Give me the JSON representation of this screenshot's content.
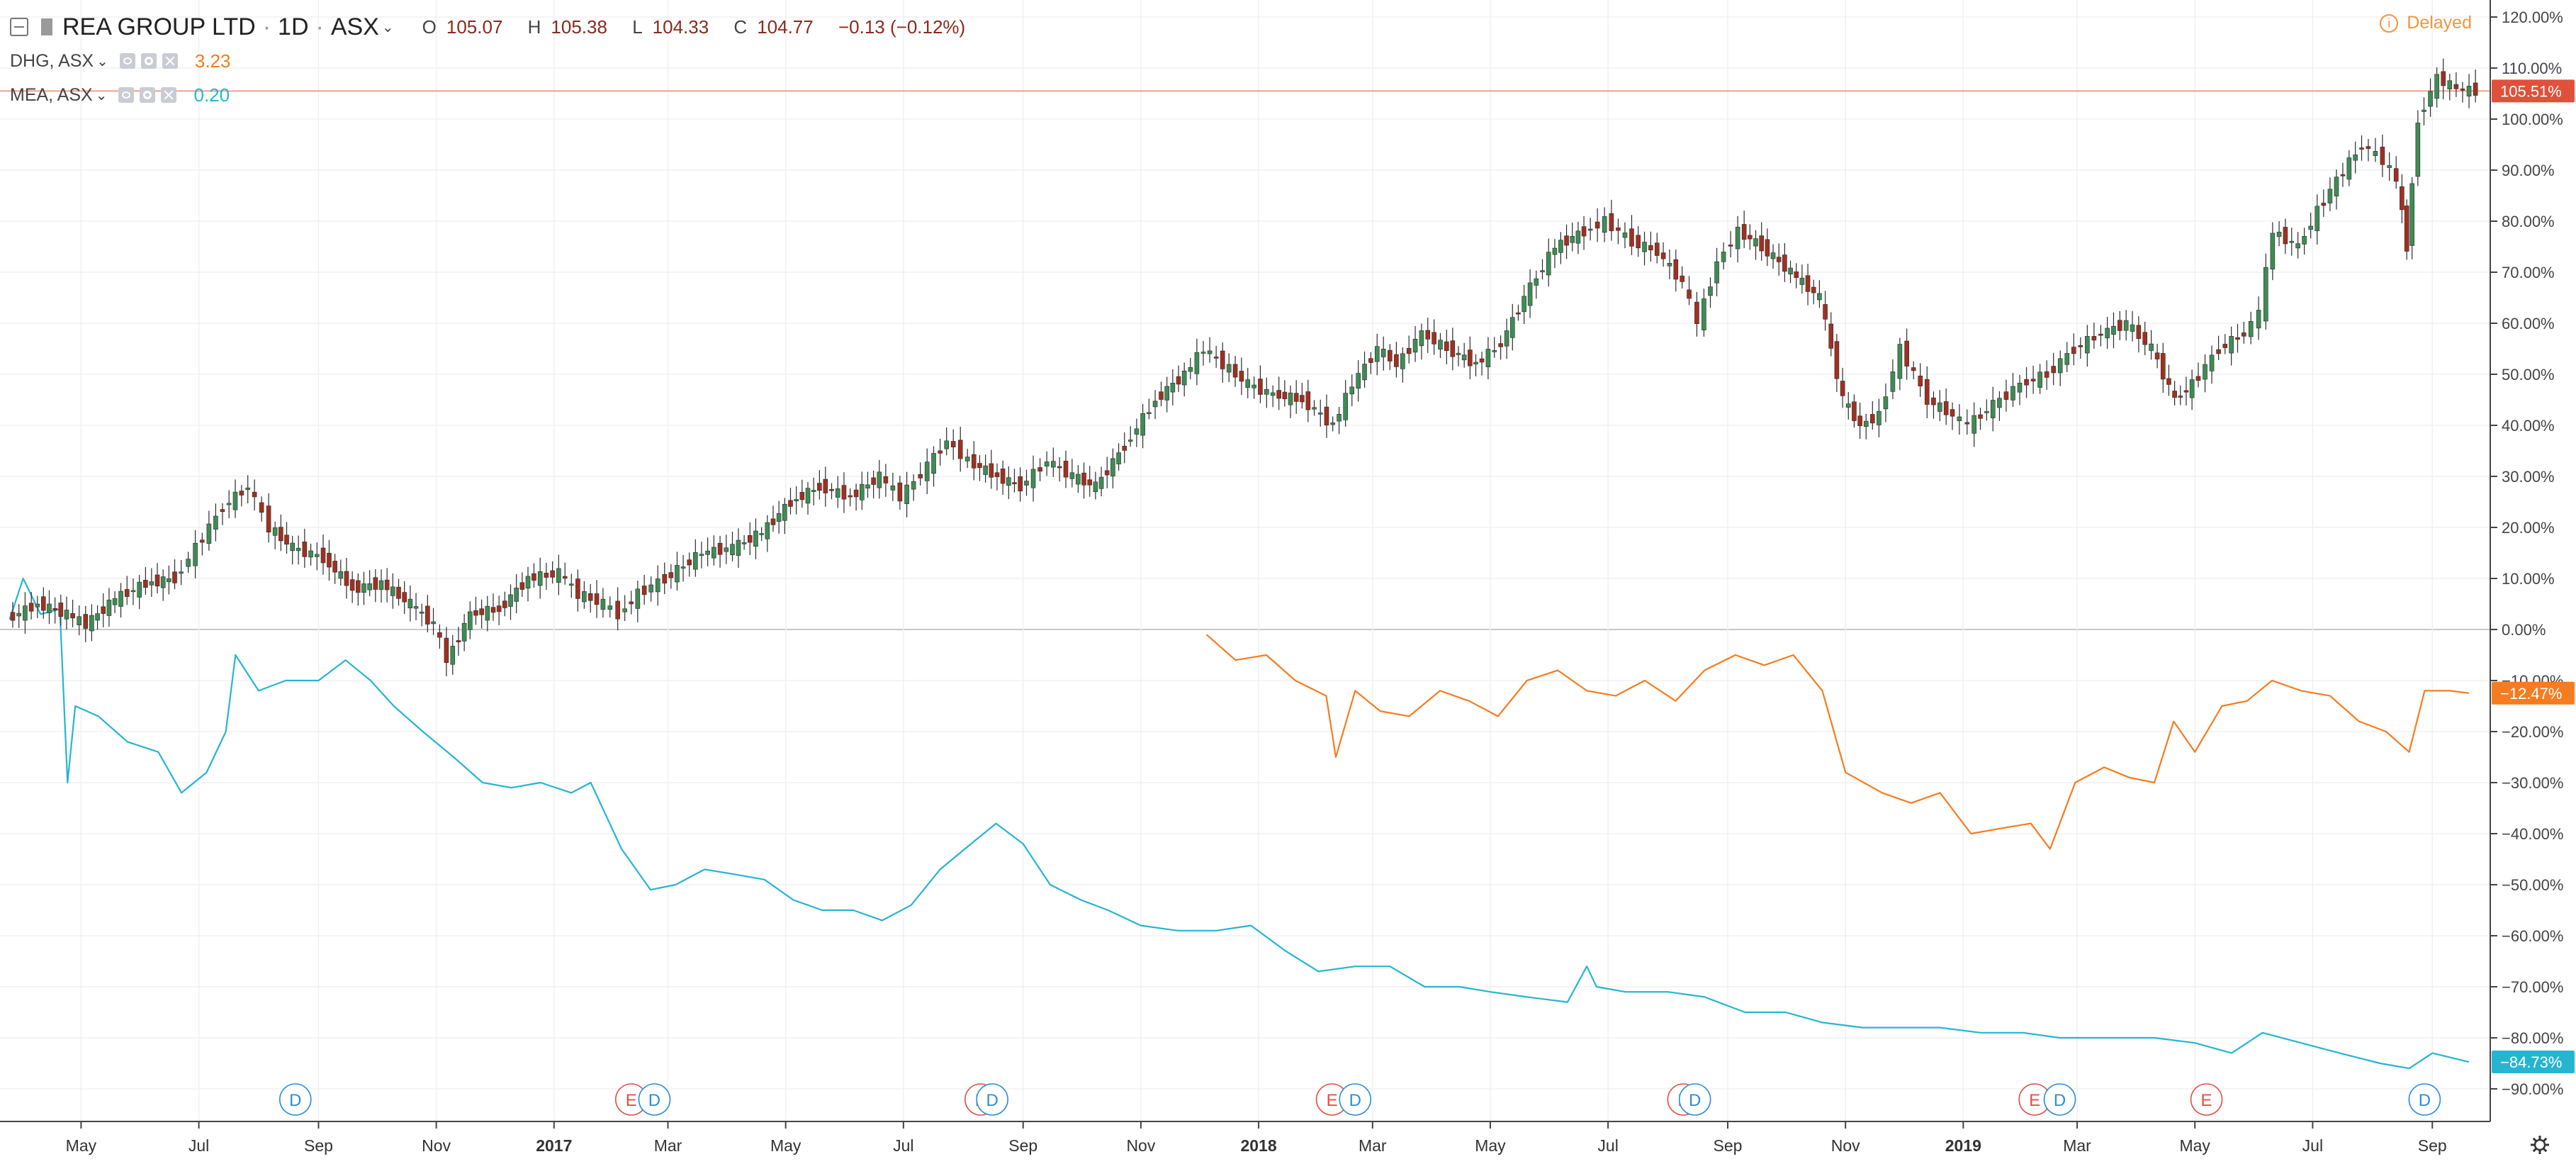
{
  "legend": {
    "symbol": "REA GROUP LTD",
    "interval": "1D",
    "exchange": "ASX",
    "ohlc": {
      "o_label": "O",
      "o": "105.07",
      "h_label": "H",
      "h": "105.38",
      "l_label": "L",
      "l": "104.33",
      "c_label": "C",
      "c": "104.77",
      "change": "−0.13 (−0.12%)"
    },
    "comparisons": [
      {
        "name": "DHG, ASX",
        "value": "3.23",
        "color": "#f57c1f"
      },
      {
        "name": "MEA, ASX",
        "value": "0.20",
        "color": "#26b5d1"
      }
    ]
  },
  "status": {
    "delayed_label": "Delayed",
    "info_icon": "i"
  },
  "icons": {
    "collapse": "collapse-icon",
    "flag": "flag-icon",
    "settings": "gear-icon"
  },
  "chart_data": {
    "type": "line",
    "grid": true,
    "y_scale": "percent",
    "ylim": [
      -95,
      122
    ],
    "y_ticks": [
      "120.00%",
      "110.00%",
      "100.00%",
      "90.00%",
      "80.00%",
      "70.00%",
      "60.00%",
      "50.00%",
      "40.00%",
      "30.00%",
      "20.00%",
      "10.00%",
      "0.00%",
      "−10.00%",
      "−20.00%",
      "−30.00%",
      "−40.00%",
      "−50.00%",
      "−60.00%",
      "−70.00%",
      "−80.00%",
      "−90.00%"
    ],
    "x_ticks": [
      {
        "label": "May",
        "x": "2016-05-01"
      },
      {
        "label": "Jul",
        "x": "2016-07-01"
      },
      {
        "label": "Sep",
        "x": "2016-09-01"
      },
      {
        "label": "Nov",
        "x": "2016-11-01"
      },
      {
        "label": "2017",
        "x": "2017-01-01"
      },
      {
        "label": "Mar",
        "x": "2017-03-01"
      },
      {
        "label": "May",
        "x": "2017-05-01"
      },
      {
        "label": "Jul",
        "x": "2017-07-01"
      },
      {
        "label": "Sep",
        "x": "2017-09-01"
      },
      {
        "label": "Nov",
        "x": "2017-11-01"
      },
      {
        "label": "2018",
        "x": "2018-01-01"
      },
      {
        "label": "Mar",
        "x": "2018-03-01"
      },
      {
        "label": "May",
        "x": "2018-05-01"
      },
      {
        "label": "Jul",
        "x": "2018-07-01"
      },
      {
        "label": "Sep",
        "x": "2018-09-01"
      },
      {
        "label": "Nov",
        "x": "2018-11-01"
      },
      {
        "label": "2019",
        "x": "2019-01-01"
      },
      {
        "label": "Mar",
        "x": "2019-03-01"
      },
      {
        "label": "May",
        "x": "2019-05-01"
      },
      {
        "label": "Jul",
        "x": "2019-07-01"
      },
      {
        "label": "Sep",
        "x": "2019-09-01"
      }
    ],
    "series": [
      {
        "name": "REA GROUP LTD",
        "style": "candles",
        "up_color": "#3e8c55",
        "down_color": "#a03020",
        "last_label": "105.51%",
        "last_bg": "#e0503a",
        "points": [
          [
            "2016-03-25",
            2
          ],
          [
            "2016-04-10",
            5
          ],
          [
            "2016-04-25",
            3
          ],
          [
            "2016-05-05",
            1
          ],
          [
            "2016-05-20",
            6
          ],
          [
            "2016-06-05",
            9
          ],
          [
            "2016-06-20",
            10
          ],
          [
            "2016-07-01",
            16
          ],
          [
            "2016-07-15",
            24
          ],
          [
            "2016-07-28",
            28
          ],
          [
            "2016-08-08",
            20
          ],
          [
            "2016-08-20",
            16
          ],
          [
            "2016-09-05",
            14
          ],
          [
            "2016-09-20",
            8
          ],
          [
            "2016-10-05",
            9
          ],
          [
            "2016-10-20",
            5
          ],
          [
            "2016-11-01",
            1
          ],
          [
            "2016-11-08",
            -6
          ],
          [
            "2016-11-20",
            3
          ],
          [
            "2016-12-05",
            4
          ],
          [
            "2016-12-20",
            10
          ],
          [
            "2017-01-05",
            11
          ],
          [
            "2017-01-15",
            7
          ],
          [
            "2017-01-28",
            5
          ],
          [
            "2017-02-05",
            3
          ],
          [
            "2017-02-15",
            7
          ],
          [
            "2017-03-01",
            10
          ],
          [
            "2017-03-20",
            15
          ],
          [
            "2017-04-05",
            16
          ],
          [
            "2017-04-20",
            19
          ],
          [
            "2017-05-05",
            25
          ],
          [
            "2017-05-20",
            28
          ],
          [
            "2017-06-05",
            26
          ],
          [
            "2017-06-20",
            30
          ],
          [
            "2017-07-01",
            26
          ],
          [
            "2017-07-15",
            32
          ],
          [
            "2017-07-25",
            37
          ],
          [
            "2017-08-05",
            33
          ],
          [
            "2017-08-20",
            30
          ],
          [
            "2017-09-01",
            28
          ],
          [
            "2017-09-15",
            33
          ],
          [
            "2017-09-28",
            30
          ],
          [
            "2017-10-10",
            28
          ],
          [
            "2017-10-25",
            36
          ],
          [
            "2017-11-10",
            45
          ],
          [
            "2017-11-25",
            50
          ],
          [
            "2017-12-05",
            55
          ],
          [
            "2017-12-15",
            52
          ],
          [
            "2017-12-28",
            48
          ],
          [
            "2018-01-10",
            46
          ],
          [
            "2018-01-25",
            45
          ],
          [
            "2018-02-10",
            40
          ],
          [
            "2018-02-20",
            48
          ],
          [
            "2018-03-05",
            55
          ],
          [
            "2018-03-15",
            52
          ],
          [
            "2018-03-28",
            58
          ],
          [
            "2018-04-10",
            55
          ],
          [
            "2018-04-25",
            52
          ],
          [
            "2018-05-08",
            56
          ],
          [
            "2018-05-20",
            65
          ],
          [
            "2018-06-05",
            75
          ],
          [
            "2018-06-20",
            78
          ],
          [
            "2018-07-01",
            80
          ],
          [
            "2018-07-15",
            76
          ],
          [
            "2018-07-28",
            74
          ],
          [
            "2018-08-10",
            68
          ],
          [
            "2018-08-18",
            60
          ],
          [
            "2018-08-28",
            72
          ],
          [
            "2018-09-08",
            78
          ],
          [
            "2018-09-20",
            75
          ],
          [
            "2018-10-05",
            70
          ],
          [
            "2018-10-20",
            65
          ],
          [
            "2018-11-01",
            45
          ],
          [
            "2018-11-10",
            40
          ],
          [
            "2018-11-20",
            42
          ],
          [
            "2018-12-01",
            55
          ],
          [
            "2018-12-15",
            45
          ],
          [
            "2018-12-28",
            42
          ],
          [
            "2019-01-05",
            40
          ],
          [
            "2019-01-18",
            44
          ],
          [
            "2019-02-01",
            48
          ],
          [
            "2019-02-15",
            50
          ],
          [
            "2019-03-01",
            55
          ],
          [
            "2019-03-15",
            58
          ],
          [
            "2019-03-28",
            60
          ],
          [
            "2019-04-10",
            55
          ],
          [
            "2019-04-22",
            45
          ],
          [
            "2019-05-01",
            48
          ],
          [
            "2019-05-15",
            55
          ],
          [
            "2019-05-28",
            58
          ],
          [
            "2019-06-05",
            62
          ],
          [
            "2019-06-12",
            78
          ],
          [
            "2019-06-25",
            75
          ],
          [
            "2019-07-05",
            82
          ],
          [
            "2019-07-15",
            88
          ],
          [
            "2019-07-28",
            95
          ],
          [
            "2019-08-08",
            92
          ],
          [
            "2019-08-15",
            88
          ],
          [
            "2019-08-20",
            75
          ],
          [
            "2019-08-26",
            100
          ],
          [
            "2019-09-05",
            108
          ],
          [
            "2019-09-15",
            106
          ],
          [
            "2019-09-25",
            105.5
          ]
        ]
      },
      {
        "name": "DHG, ASX",
        "style": "line",
        "color": "#f57c1f",
        "last_label": "−12.47%",
        "last_bg": "#f57c1f",
        "points": [
          [
            "2017-12-05",
            -1
          ],
          [
            "2017-12-20",
            -6
          ],
          [
            "2018-01-05",
            -5
          ],
          [
            "2018-01-20",
            -10
          ],
          [
            "2018-02-05",
            -13
          ],
          [
            "2018-02-10",
            -25
          ],
          [
            "2018-02-20",
            -12
          ],
          [
            "2018-03-05",
            -16
          ],
          [
            "2018-03-20",
            -17
          ],
          [
            "2018-04-05",
            -12
          ],
          [
            "2018-04-20",
            -14
          ],
          [
            "2018-05-05",
            -17
          ],
          [
            "2018-05-20",
            -10
          ],
          [
            "2018-06-05",
            -8
          ],
          [
            "2018-06-20",
            -12
          ],
          [
            "2018-07-05",
            -13
          ],
          [
            "2018-07-20",
            -10
          ],
          [
            "2018-08-05",
            -14
          ],
          [
            "2018-08-20",
            -8
          ],
          [
            "2018-09-05",
            -5
          ],
          [
            "2018-09-20",
            -7
          ],
          [
            "2018-10-05",
            -5
          ],
          [
            "2018-10-20",
            -12
          ],
          [
            "2018-11-01",
            -28
          ],
          [
            "2018-11-20",
            -32
          ],
          [
            "2018-12-05",
            -34
          ],
          [
            "2018-12-20",
            -32
          ],
          [
            "2019-01-05",
            -40
          ],
          [
            "2019-01-20",
            -39
          ],
          [
            "2019-02-05",
            -38
          ],
          [
            "2019-02-15",
            -43
          ],
          [
            "2019-02-28",
            -30
          ],
          [
            "2019-03-15",
            -27
          ],
          [
            "2019-03-28",
            -29
          ],
          [
            "2019-04-10",
            -30
          ],
          [
            "2019-04-20",
            -18
          ],
          [
            "2019-05-01",
            -24
          ],
          [
            "2019-05-15",
            -15
          ],
          [
            "2019-05-28",
            -14
          ],
          [
            "2019-06-10",
            -10
          ],
          [
            "2019-06-25",
            -12
          ],
          [
            "2019-07-10",
            -13
          ],
          [
            "2019-07-25",
            -18
          ],
          [
            "2019-08-08",
            -20
          ],
          [
            "2019-08-20",
            -24
          ],
          [
            "2019-08-28",
            -12
          ],
          [
            "2019-09-10",
            -12
          ],
          [
            "2019-09-20",
            -12.47
          ]
        ]
      },
      {
        "name": "MEA, ASX",
        "style": "line",
        "color": "#26b5d1",
        "last_label": "−84.73%",
        "last_bg": "#26b5d1",
        "points": [
          [
            "2016-03-25",
            2
          ],
          [
            "2016-04-01",
            10
          ],
          [
            "2016-04-10",
            3
          ],
          [
            "2016-04-20",
            4
          ],
          [
            "2016-04-24",
            -30
          ],
          [
            "2016-04-28",
            -15
          ],
          [
            "2016-05-10",
            -17
          ],
          [
            "2016-05-25",
            -22
          ],
          [
            "2016-06-10",
            -24
          ],
          [
            "2016-06-22",
            -32
          ],
          [
            "2016-07-05",
            -28
          ],
          [
            "2016-07-15",
            -20
          ],
          [
            "2016-07-20",
            -5
          ],
          [
            "2016-08-01",
            -12
          ],
          [
            "2016-08-15",
            -10
          ],
          [
            "2016-09-01",
            -10
          ],
          [
            "2016-09-15",
            -6
          ],
          [
            "2016-09-28",
            -10
          ],
          [
            "2016-10-10",
            -15
          ],
          [
            "2016-10-25",
            -20
          ],
          [
            "2016-11-10",
            -25
          ],
          [
            "2016-11-25",
            -30
          ],
          [
            "2016-12-10",
            -31
          ],
          [
            "2016-12-25",
            -30
          ],
          [
            "2017-01-10",
            -32
          ],
          [
            "2017-01-20",
            -30
          ],
          [
            "2017-02-05",
            -43
          ],
          [
            "2017-02-20",
            -51
          ],
          [
            "2017-03-05",
            -50
          ],
          [
            "2017-03-20",
            -47
          ],
          [
            "2017-04-05",
            -48
          ],
          [
            "2017-04-20",
            -49
          ],
          [
            "2017-05-05",
            -53
          ],
          [
            "2017-05-20",
            -55
          ],
          [
            "2017-06-05",
            -55
          ],
          [
            "2017-06-20",
            -57
          ],
          [
            "2017-07-05",
            -54
          ],
          [
            "2017-07-20",
            -47
          ],
          [
            "2017-08-05",
            -42
          ],
          [
            "2017-08-18",
            -38
          ],
          [
            "2017-09-01",
            -42
          ],
          [
            "2017-09-15",
            -50
          ],
          [
            "2017-10-01",
            -53
          ],
          [
            "2017-10-15",
            -55
          ],
          [
            "2017-11-01",
            -58
          ],
          [
            "2017-11-20",
            -59
          ],
          [
            "2017-12-10",
            -59
          ],
          [
            "2017-12-28",
            -58
          ],
          [
            "2018-01-15",
            -63
          ],
          [
            "2018-02-01",
            -67
          ],
          [
            "2018-02-20",
            -66
          ],
          [
            "2018-03-10",
            -66
          ],
          [
            "2018-03-28",
            -70
          ],
          [
            "2018-04-15",
            -70
          ],
          [
            "2018-05-01",
            -71
          ],
          [
            "2018-05-20",
            -72
          ],
          [
            "2018-06-10",
            -73
          ],
          [
            "2018-06-20",
            -66
          ],
          [
            "2018-06-25",
            -70
          ],
          [
            "2018-07-10",
            -71
          ],
          [
            "2018-08-01",
            -71
          ],
          [
            "2018-08-20",
            -72
          ],
          [
            "2018-09-10",
            -75
          ],
          [
            "2018-10-01",
            -75
          ],
          [
            "2018-10-20",
            -77
          ],
          [
            "2018-11-10",
            -78
          ],
          [
            "2018-12-01",
            -78
          ],
          [
            "2018-12-20",
            -78
          ],
          [
            "2019-01-10",
            -79
          ],
          [
            "2019-02-01",
            -79
          ],
          [
            "2019-02-20",
            -80
          ],
          [
            "2019-03-15",
            -80
          ],
          [
            "2019-04-10",
            -80
          ],
          [
            "2019-05-01",
            -81
          ],
          [
            "2019-05-20",
            -83
          ],
          [
            "2019-06-05",
            -79
          ],
          [
            "2019-06-25",
            -81
          ],
          [
            "2019-07-15",
            -83
          ],
          [
            "2019-08-05",
            -85
          ],
          [
            "2019-08-20",
            -86
          ],
          [
            "2019-09-01",
            -83
          ],
          [
            "2019-09-20",
            -84.73
          ]
        ]
      }
    ],
    "reference_line": {
      "y": 105.51,
      "color": "#f0a08a"
    },
    "events": [
      {
        "type": "D",
        "date": "2016-08-20"
      },
      {
        "type": "E",
        "date": "2017-02-10"
      },
      {
        "type": "D",
        "date": "2017-02-22"
      },
      {
        "type": "E",
        "date": "2017-08-10"
      },
      {
        "type": "D",
        "date": "2017-08-16"
      },
      {
        "type": "E",
        "date": "2018-02-08"
      },
      {
        "type": "D",
        "date": "2018-02-20"
      },
      {
        "type": "E",
        "date": "2018-08-09"
      },
      {
        "type": "D",
        "date": "2018-08-15"
      },
      {
        "type": "E",
        "date": "2019-02-07"
      },
      {
        "type": "D",
        "date": "2019-02-20"
      },
      {
        "type": "E",
        "date": "2019-05-07"
      },
      {
        "type": "D",
        "date": "2019-08-28"
      }
    ],
    "event_colors": {
      "E": "#e0504a",
      "D": "#2a8fd8"
    },
    "x_range": [
      "2016-03-20",
      "2019-10-01"
    ]
  }
}
